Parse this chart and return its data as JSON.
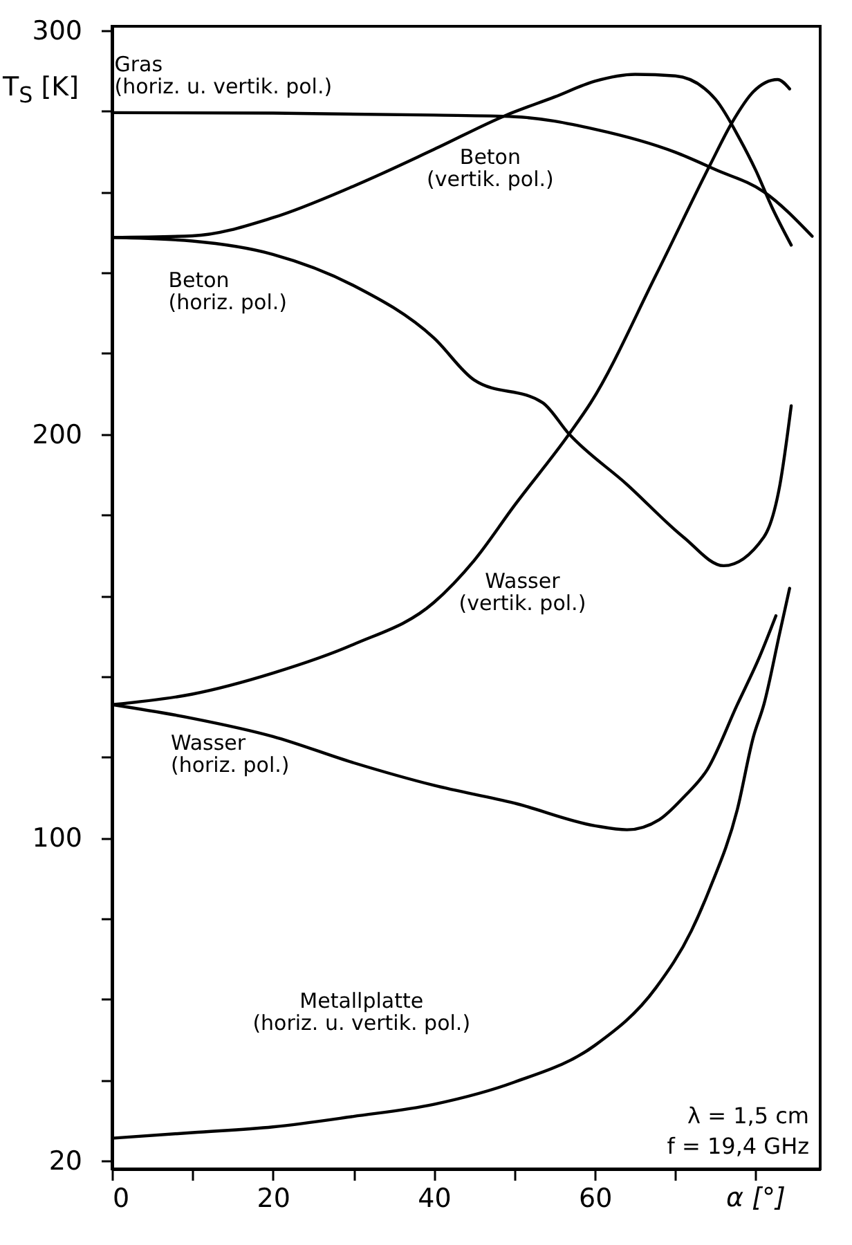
{
  "chart_data": {
    "type": "line",
    "ylabel": "T$_{S}$ [K]",
    "xlabel": "α [°]",
    "xlim": [
      0,
      88
    ],
    "ylim": [
      18,
      301
    ],
    "xticks": [
      0,
      {
        "value": 10,
        "label": null
      },
      20,
      {
        "value": 30,
        "label": null
      },
      40,
      {
        "value": 50,
        "label": null
      },
      60,
      {
        "value": 70,
        "label": null
      },
      {
        "value": 80,
        "label": null
      }
    ],
    "yticks": [
      20,
      {
        "value": 40,
        "label": null
      },
      {
        "value": 60,
        "label": null
      },
      {
        "value": 80,
        "label": null
      },
      100,
      {
        "value": 120,
        "label": null
      },
      {
        "value": 140,
        "label": null
      },
      {
        "value": 160,
        "label": null
      },
      {
        "value": 180,
        "label": null
      },
      200,
      {
        "value": 220,
        "label": null
      },
      {
        "value": 240,
        "label": null
      },
      {
        "value": 260,
        "label": null
      },
      {
        "value": 280,
        "label": null
      },
      300
    ],
    "grid": false,
    "marker": "none",
    "line_style": "solid",
    "annotations": [
      "λ = 1,5 cm",
      "f = 19,4 GHz"
    ],
    "series": [
      {
        "name": "Gras\n(horiz. u. vertik. pol.)",
        "color": "#000000",
        "x": [
          0,
          20,
          40,
          50,
          60,
          70,
          75,
          81,
          87
        ],
        "values": [
          279.6,
          279.5,
          279,
          278.6,
          275.5,
          269.8,
          265.5,
          260,
          249
        ]
      },
      {
        "name": "Beton\n(vertik. pol.)",
        "color": "#000000",
        "x": [
          0,
          10,
          20,
          30,
          40,
          49,
          55,
          60,
          65,
          70,
          75,
          78,
          80,
          82,
          84.4
        ],
        "values": [
          248.7,
          249.1,
          253.6,
          261.4,
          270.5,
          279,
          283.5,
          287.4,
          289.1,
          288.7,
          282.9,
          273.1,
          265.3,
          256.2,
          246.8
        ]
      },
      {
        "name": "Beton\n(horiz. pol.)",
        "color": "#000000",
        "x": [
          0,
          10,
          20,
          30,
          40,
          45,
          53.5,
          56.8,
          64,
          71,
          76,
          81,
          83,
          84.4
        ],
        "values": [
          248.7,
          247.8,
          244.5,
          236.8,
          223.8,
          213.4,
          207.8,
          200,
          187.5,
          174.5,
          167.4,
          174.5,
          187.5,
          207
        ]
      },
      {
        "name": "Wasser\n(vertik. pol.)",
        "color": "#000000",
        "x": [
          0,
          10,
          20,
          30,
          40,
          45,
          50,
          56.8,
          59.5,
          67.6,
          74.3,
          77,
          79.7,
          82.7,
          84.2
        ],
        "values": [
          133,
          135.6,
          140.8,
          147.9,
          158.3,
          168.7,
          182.3,
          200,
          207.8,
          239.4,
          266.6,
          277,
          284.8,
          287.8,
          285.5
        ]
      },
      {
        "name": "Wasser\n(horiz. pol.)",
        "color": "#000000",
        "x": [
          0,
          10,
          20,
          30,
          40,
          50,
          60,
          64,
          68,
          71,
          74,
          77.7,
          80.5,
          82.5
        ],
        "values": [
          133,
          129.6,
          125.1,
          118.6,
          113,
          108.6,
          103,
          102,
          104.5,
          110,
          117,
          133,
          145,
          155
        ]
      },
      {
        "name": "Metallplatte\n(horiz. u. vertik. pol.)",
        "color": "#000000",
        "x": [
          0,
          10,
          20,
          30,
          40,
          50,
          60,
          67.6,
          72,
          74.3,
          77.7,
          79.7,
          81,
          83,
          84.2
        ],
        "values": [
          25.6,
          27,
          28.4,
          31,
          34,
          39.5,
          48.6,
          62.9,
          77,
          87.5,
          107,
          125,
          133,
          151,
          161.8
        ]
      }
    ]
  }
}
